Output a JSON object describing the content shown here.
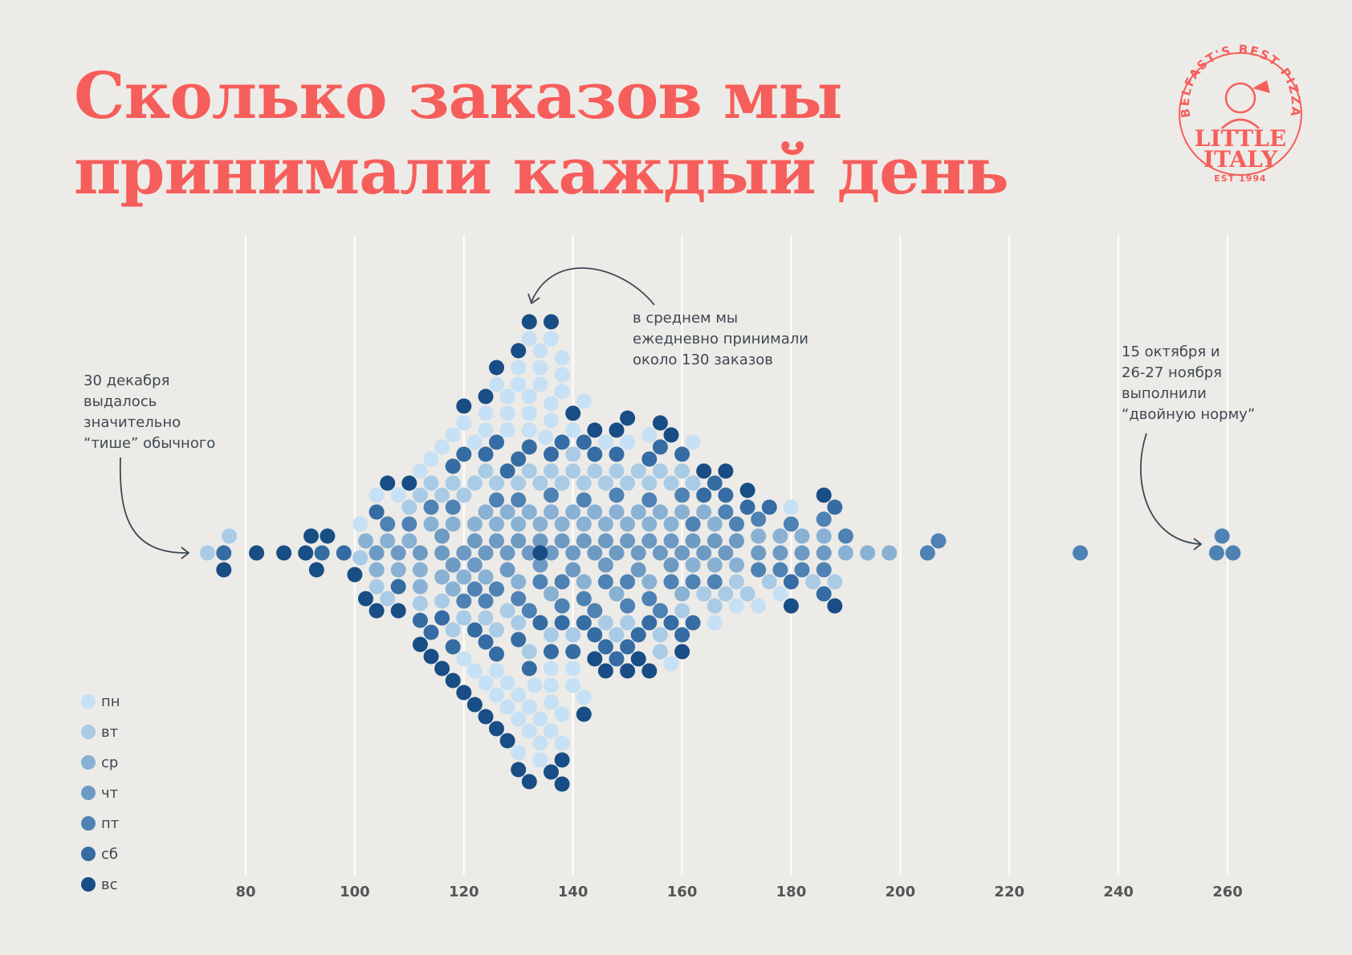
{
  "title_lines": [
    "Сколько заказов мы",
    "принимали каждый день"
  ],
  "logo": {
    "arc_text": "BELFAST'S BEST PIZZA",
    "line1": "LITTLE",
    "line2": "ITALY",
    "est": "EST 1994"
  },
  "colors": {
    "title": "#f65e5b",
    "background": "#edebe7",
    "gridline": "#ffffff",
    "annotation": "#3d4852"
  },
  "annotations": {
    "left": [
      "30 декабря",
      "выдалось",
      "значительно",
      "“тише” обычного"
    ],
    "middle": [
      "в среднем мы",
      "ежедневно принимали",
      "около 130 заказов"
    ],
    "right": [
      "15 октября и",
      "26-27 ноября",
      "выполнили",
      "“двойную норму”"
    ]
  },
  "chart_data": {
    "type": "scatter",
    "subtype": "beeswarm",
    "title": "Сколько заказов мы принимали каждый день",
    "xlabel": "",
    "ylabel": "",
    "xlim": [
      68,
      272
    ],
    "xticks": [
      80,
      100,
      120,
      140,
      160,
      180,
      200,
      220,
      240,
      260
    ],
    "grid": true,
    "legend_position": "bottom-left",
    "series": [
      {
        "name": "пн",
        "color": "#c6e0f5",
        "values": [
          101,
          104,
          108,
          112,
          116,
          120,
          124,
          128,
          132,
          136,
          140,
          146,
          150,
          154,
          158,
          162,
          166,
          170,
          174,
          178,
          180,
          114,
          118,
          122,
          126,
          130,
          134,
          138,
          142,
          120,
          124,
          128,
          132,
          136,
          122,
          126,
          130,
          134,
          138,
          128,
          132,
          136,
          140,
          126,
          130,
          134,
          138,
          142,
          124,
          128,
          132,
          136,
          140,
          130,
          134,
          138,
          132,
          136,
          134,
          136,
          132,
          134,
          130,
          136,
          128,
          138,
          133,
          135
        ]
      },
      {
        "name": "вт",
        "color": "#a9cbe6",
        "values": [
          73,
          77,
          101,
          104,
          106,
          110,
          112,
          114,
          116,
          118,
          120,
          122,
          124,
          126,
          128,
          130,
          132,
          134,
          136,
          138,
          140,
          142,
          144,
          146,
          148,
          150,
          152,
          154,
          156,
          158,
          160,
          162,
          164,
          166,
          168,
          170,
          172,
          176,
          184,
          188,
          112,
          118,
          120,
          126,
          130,
          136,
          140,
          146,
          150,
          156,
          160,
          116,
          124,
          132,
          140,
          148,
          156
        ]
      },
      {
        "name": "ср",
        "color": "#88b1d4",
        "values": [
          102,
          104,
          106,
          108,
          110,
          112,
          114,
          116,
          118,
          120,
          122,
          124,
          126,
          128,
          130,
          132,
          134,
          136,
          138,
          140,
          142,
          144,
          146,
          148,
          150,
          152,
          154,
          156,
          158,
          160,
          162,
          164,
          166,
          170,
          174,
          178,
          182,
          186,
          190,
          194,
          198,
          112,
          118,
          124,
          130,
          136,
          142,
          148,
          154,
          160,
          166
        ]
      },
      {
        "name": "чт",
        "color": "#6d9ac3",
        "values": [
          104,
          108,
          112,
          116,
          118,
          120,
          122,
          124,
          126,
          128,
          130,
          132,
          134,
          136,
          138,
          140,
          142,
          144,
          146,
          148,
          150,
          152,
          154,
          156,
          158,
          160,
          162,
          164,
          166,
          168,
          170,
          174,
          178,
          182,
          186,
          116,
          122,
          128,
          134,
          140,
          146,
          152,
          158
        ]
      },
      {
        "name": "пт",
        "color": "#4f82b4",
        "values": [
          106,
          110,
          114,
          118,
          122,
          126,
          130,
          134,
          138,
          142,
          146,
          150,
          154,
          158,
          162,
          166,
          170,
          174,
          178,
          182,
          186,
          190,
          205,
          207,
          233,
          258,
          259,
          261,
          120,
          126,
          132,
          138,
          144,
          150,
          156,
          162,
          168,
          174,
          180,
          186,
          124,
          130,
          136,
          142,
          148,
          154,
          160
        ]
      },
      {
        "name": "сб",
        "color": "#356ca3",
        "values": [
          76,
          94,
          98,
          104,
          108,
          112,
          114,
          116,
          118,
          120,
          122,
          124,
          126,
          128,
          130,
          132,
          134,
          136,
          138,
          140,
          142,
          144,
          146,
          148,
          150,
          152,
          154,
          156,
          158,
          160,
          162,
          164,
          166,
          168,
          172,
          176,
          180,
          186,
          188,
          118,
          124,
          130,
          136,
          142,
          148,
          154,
          160,
          126,
          132,
          138,
          144
        ]
      },
      {
        "name": "вс",
        "color": "#184d85",
        "values": [
          76,
          82,
          87,
          91,
          92,
          93,
          95,
          100,
          102,
          104,
          106,
          108,
          110,
          112,
          114,
          116,
          118,
          120,
          122,
          124,
          126,
          128,
          130,
          132,
          134,
          136,
          138,
          140,
          142,
          144,
          146,
          148,
          150,
          152,
          154,
          156,
          158,
          160,
          164,
          168,
          172,
          180,
          186,
          188,
          120,
          126,
          132,
          138,
          144,
          150,
          124,
          130,
          136
        ]
      }
    ]
  }
}
